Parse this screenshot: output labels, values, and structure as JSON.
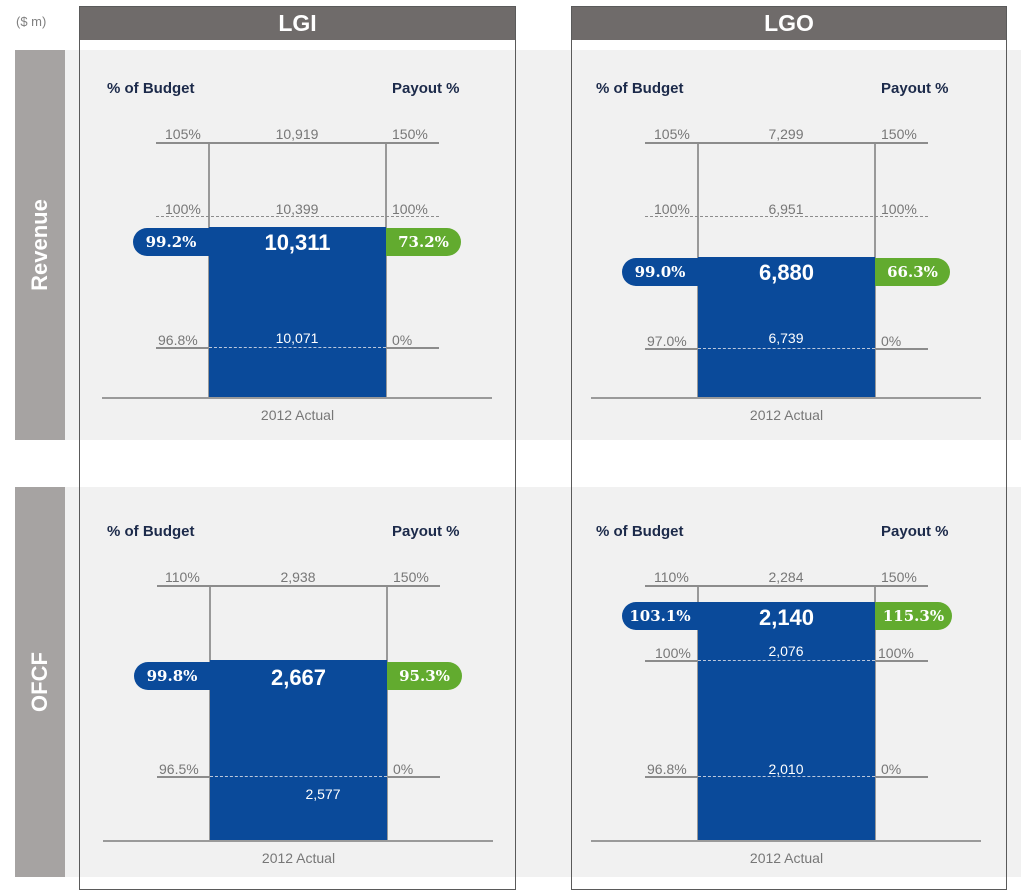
{
  "unit_label": "($ m)",
  "columns": [
    "LGI",
    "LGO"
  ],
  "rows": [
    "Revenue",
    "OFCF"
  ],
  "common": {
    "left_header": "% of Budget",
    "right_header": "Payout %",
    "x_label": "2012 Actual"
  },
  "colors": {
    "bar": "#0a4a9a",
    "payout": "#62ab2f",
    "header": "#6f6b6a",
    "band": "#f1f1f1"
  },
  "chart_data": [
    {
      "type": "bar",
      "title": "LGI Revenue",
      "levels": [
        {
          "pct": "105%",
          "value": "10,919",
          "payout": "150%",
          "num": 10919,
          "style": "solid"
        },
        {
          "pct": "100%",
          "value": "10,399",
          "payout": "100%",
          "num": 10399,
          "style": "dashed"
        },
        {
          "pct": "96.8%",
          "value": "10,071",
          "payout": "0%",
          "num": 10071,
          "style": "dashed"
        }
      ],
      "actual": {
        "value": "10,311",
        "num": 10311,
        "pct_budget": "99.2%",
        "payout": "73.2%"
      }
    },
    {
      "type": "bar",
      "title": "LGO Revenue",
      "levels": [
        {
          "pct": "105%",
          "value": "7,299",
          "payout": "150%",
          "num": 7299,
          "style": "solid"
        },
        {
          "pct": "100%",
          "value": "6,951",
          "payout": "100%",
          "num": 6951,
          "style": "dashed"
        },
        {
          "pct": "97.0%",
          "value": "6,739",
          "payout": "0%",
          "num": 6739,
          "style": "dashed"
        }
      ],
      "actual": {
        "value": "6,880",
        "num": 6880,
        "pct_budget": "99.0%",
        "payout": "66.3%"
      }
    },
    {
      "type": "bar",
      "title": "LGI OFCF",
      "levels": [
        {
          "pct": "110%",
          "value": "2,938",
          "payout": "150%",
          "num": 2938,
          "style": "solid"
        },
        {
          "pct": "96.5%",
          "value": "2,577",
          "payout": "0%",
          "num": 2577,
          "style": "dashed"
        }
      ],
      "actual": {
        "value": "2,667",
        "num": 2667,
        "pct_budget": "99.8%",
        "payout": "95.3%"
      }
    },
    {
      "type": "bar",
      "title": "LGO OFCF",
      "levels": [
        {
          "pct": "110%",
          "value": "2,284",
          "payout": "150%",
          "num": 2284,
          "style": "solid"
        },
        {
          "pct": "100%",
          "value": "2,076",
          "payout": "100%",
          "num": 2076,
          "style": "dashed"
        },
        {
          "pct": "96.8%",
          "value": "2,010",
          "payout": "0%",
          "num": 2010,
          "style": "dashed"
        }
      ],
      "actual": {
        "value": "2,140",
        "num": 2140,
        "pct_budget": "103.1%",
        "payout": "115.3%"
      }
    }
  ]
}
